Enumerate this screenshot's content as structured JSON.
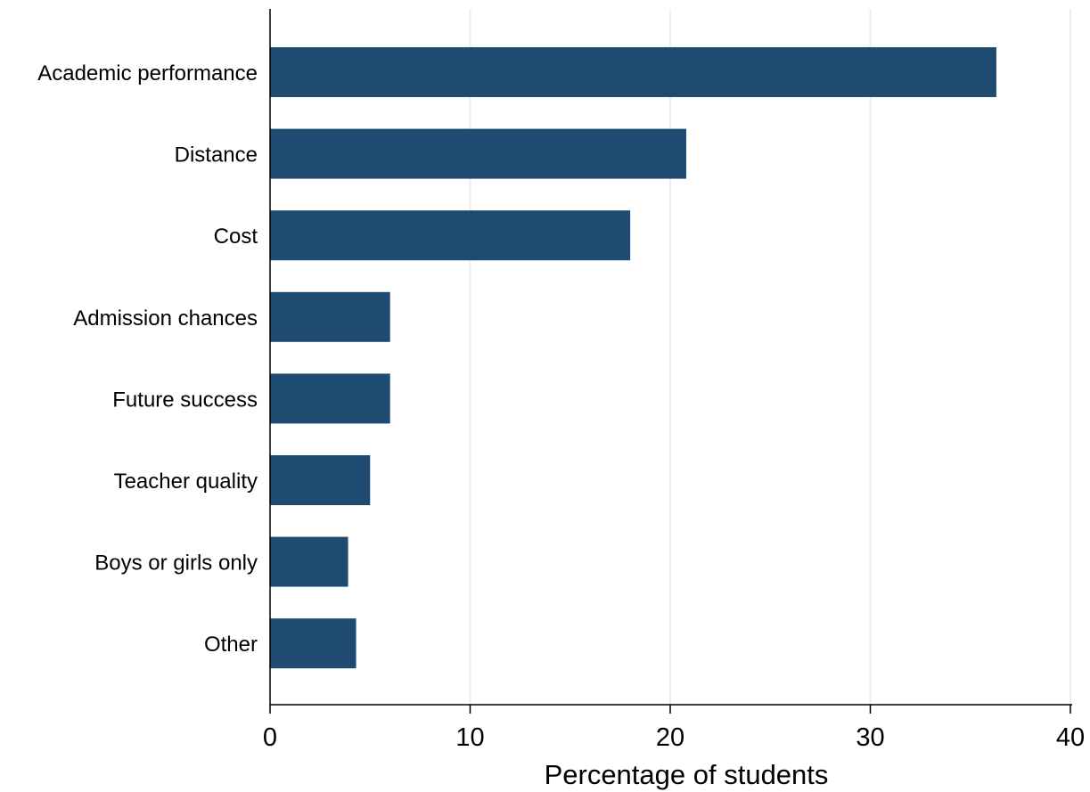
{
  "chart_data": {
    "type": "bar",
    "orientation": "horizontal",
    "categories": [
      "Academic performance",
      "Distance",
      "Cost",
      "Admission chances",
      "Future success",
      "Teacher quality",
      "Boys or girls only",
      "Other"
    ],
    "values": [
      36.3,
      20.8,
      18.0,
      6.0,
      6.0,
      5.0,
      3.9,
      4.3
    ],
    "xlabel": "Percentage of students",
    "ylabel": "",
    "xlim": [
      0,
      40
    ],
    "xticks": [
      0,
      10,
      20,
      30,
      40
    ],
    "xtick_labels": [
      "0",
      "10",
      "20",
      "30",
      "40"
    ],
    "grid": "vertical",
    "bar_color": "#1f4a71",
    "grid_color": "#eaeeef"
  }
}
